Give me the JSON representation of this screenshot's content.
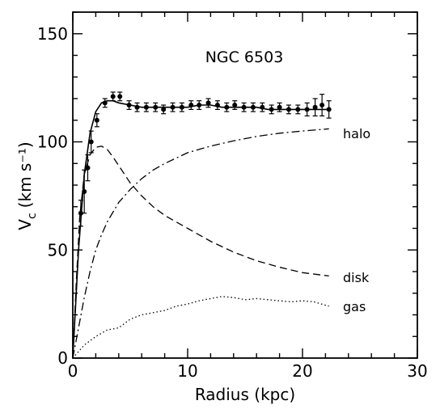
{
  "chart_data": {
    "type": "line",
    "title": "NGC 6503",
    "xlabel": "Radius (kpc)",
    "ylabel_main": "V",
    "ylabel_sub": "c",
    "ylabel_units": "(km s⁻¹)",
    "xlim": [
      0,
      30
    ],
    "ylim": [
      0,
      160
    ],
    "xticks": [
      0,
      10,
      20,
      30
    ],
    "yticks": [
      0,
      50,
      100,
      150
    ],
    "grid": false,
    "legend": "labels at curve ends (right)",
    "observed": {
      "x": [
        0.7,
        1.0,
        1.3,
        1.6,
        2.1,
        2.8,
        3.5,
        4.1,
        4.9,
        5.6,
        6.4,
        7.2,
        7.9,
        8.7,
        9.5,
        10.3,
        11.0,
        11.8,
        12.6,
        13.4,
        14.1,
        14.9,
        15.7,
        16.5,
        17.3,
        18.0,
        18.8,
        19.6,
        20.4,
        21.1,
        21.7,
        22.3
      ],
      "y": [
        67,
        77,
        88,
        100,
        110,
        118,
        121,
        121,
        117,
        116,
        116,
        116,
        115,
        116,
        116,
        117,
        117,
        118,
        117,
        116,
        117,
        116,
        116,
        116,
        115,
        116,
        115,
        115,
        115,
        116,
        117,
        115
      ],
      "yerr": [
        6,
        10,
        6,
        5,
        3,
        2,
        2,
        2,
        2,
        2,
        2,
        2,
        2,
        2,
        2,
        2,
        2,
        2,
        2,
        2,
        2,
        2,
        2,
        2,
        2,
        2,
        2,
        2,
        3,
        4,
        5,
        4
      ]
    },
    "series": [
      {
        "name": "",
        "style": "solid",
        "x": [
          0,
          0.5,
          1.0,
          1.5,
          2.0,
          2.5,
          3.0,
          3.5,
          4.0,
          5.0,
          6.0,
          7.0,
          8.0,
          9.0,
          10.0,
          11.0,
          12.0,
          13.0,
          14.0,
          15.0,
          16.0,
          17.0,
          18.0,
          19.0,
          20.0,
          21.0,
          22.0,
          22.3
        ],
        "y": [
          0,
          50,
          85,
          104,
          114,
          118,
          119,
          119,
          118,
          117,
          116,
          116,
          116,
          116,
          116,
          117,
          117,
          116,
          116,
          116,
          116,
          115,
          115,
          115,
          115,
          115,
          115,
          115
        ]
      },
      {
        "name": "halo",
        "style": "dashdot",
        "x": [
          0,
          0.5,
          1.0,
          1.5,
          2.0,
          2.5,
          3.0,
          4.0,
          5.0,
          6.0,
          7.0,
          8.0,
          10.0,
          12.0,
          14.0,
          16.0,
          18.0,
          20.0,
          22.3
        ],
        "y": [
          0,
          14,
          28,
          40,
          50,
          57,
          63,
          72,
          78,
          83,
          87,
          90,
          95,
          98,
          100.5,
          102.5,
          104,
          105,
          106
        ]
      },
      {
        "name": "disk",
        "style": "dashed",
        "x": [
          0,
          0.3,
          0.6,
          1.0,
          1.5,
          2.0,
          2.5,
          3.0,
          3.5,
          4.0,
          5.0,
          6.0,
          7.0,
          8.0,
          10.0,
          12.0,
          14.0,
          16.0,
          18.0,
          20.0,
          22.3
        ],
        "y": [
          0,
          35,
          65,
          85,
          94,
          97.5,
          98,
          96.5,
          93,
          89,
          81,
          75,
          70,
          66,
          60,
          54,
          49,
          45,
          42,
          39.5,
          38
        ]
      },
      {
        "name": "gas",
        "style": "dotted",
        "x": [
          0,
          1.0,
          2.0,
          3.0,
          4.0,
          5.0,
          6.0,
          7.0,
          8.0,
          9.0,
          10.0,
          11.0,
          12.0,
          13.0,
          14.0,
          15.0,
          16.0,
          17.0,
          18.0,
          19.0,
          20.0,
          21.0,
          22.3
        ],
        "y": [
          0,
          6,
          10,
          13,
          14,
          18,
          20,
          21,
          22,
          24,
          25,
          26.5,
          27.5,
          28.5,
          28,
          27,
          27.5,
          27,
          26.5,
          26,
          26.5,
          26,
          24
        ]
      }
    ]
  },
  "colors": {
    "ink": "#000000",
    "background": "#ffffff"
  }
}
